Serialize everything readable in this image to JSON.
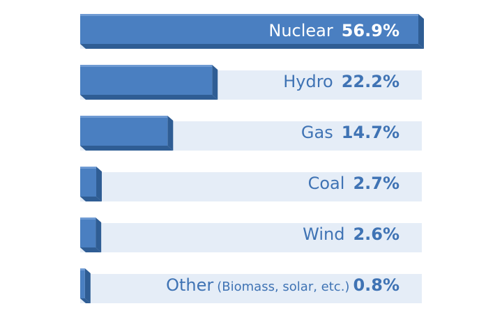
{
  "colors": {
    "bar_front": "#4a7fc1",
    "bar_top": "#6f9bd3",
    "bar_side": "#2f5d94",
    "track": "#e5edf7",
    "label_dark": "#3f73b4",
    "label_light": "#ffffff"
  },
  "chart_data": {
    "type": "bar",
    "orientation": "horizontal",
    "unit": "%",
    "xlim": [
      0,
      56.9
    ],
    "grid": false,
    "legend": "none",
    "categories": [
      "Nuclear",
      "Hydro",
      "Gas",
      "Coal",
      "Wind",
      "Other"
    ],
    "category_notes": [
      "",
      "",
      "",
      "",
      "",
      "(Biomass, solar, etc.)"
    ],
    "values": [
      56.9,
      22.2,
      14.7,
      2.7,
      2.6,
      0.8
    ],
    "value_labels": [
      "56.9%",
      "22.2%",
      "14.7%",
      "2.7%",
      "2.6%",
      "0.8%"
    ]
  }
}
